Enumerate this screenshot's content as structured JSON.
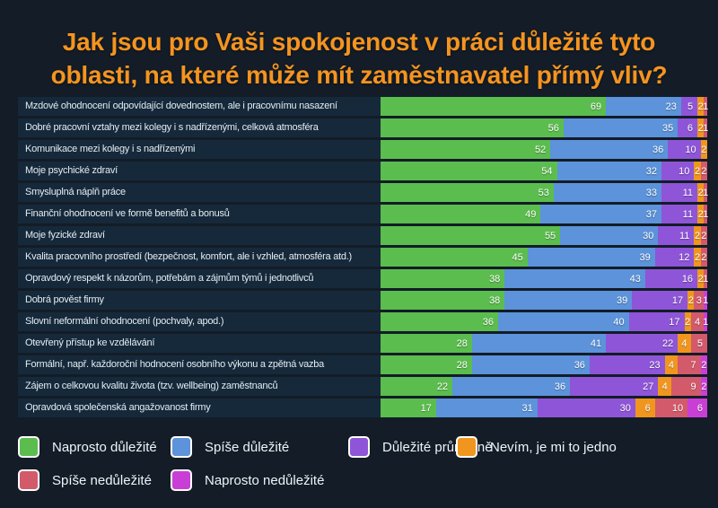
{
  "title": {
    "lines": [
      "Jak jsou pro Vaši spokojenost v práci důležité tyto",
      "oblasti, na které může mít zaměstnavatel přímý vliv?"
    ],
    "color": "#f5941f"
  },
  "colors": {
    "background": "#131c27",
    "row_band": "#16293a",
    "label_text": "#e3ecf3",
    "value_text": "#ffffff"
  },
  "chart_data": {
    "type": "bar",
    "orientation": "horizontal",
    "stacked": true,
    "unit": "percent",
    "xlim": [
      0,
      100
    ],
    "grid": false,
    "legend_position": "bottom",
    "title": "Jak jsou pro Vaši spokojenost v práci důležité tyto oblasti, na které může mít zaměstnavatel přímý vliv?",
    "categories": [
      "Mzdové ohodnocení odpovídající dovednostem, ale i pracovnímu nasazení",
      "Dobré pracovní vztahy mezi kolegy i s nadřízenými, celková atmosféra",
      "Komunikace mezi kolegy i s nadřízenými",
      "Moje psychické zdraví",
      "Smysluplná náplň práce",
      "Finanční ohodnocení ve formě benefitů a bonusů",
      "Moje fyzické zdraví",
      "Kvalita pracovního prostředí (bezpečnost, komfort, ale i  vzhled, atmosféra atd.)",
      "Opravdový respekt k názorům, potřebám a zájmům týmů i jednotlivců",
      "Dobrá pověst firmy",
      "Slovní neformální ohodnocení (pochvaly, apod.)",
      "Otevřený přístup ke vzdělávání",
      "Formální, např. každoroční hodnocení osobního výkonu a zpětná vazba",
      "Zájem o celkovou kvalitu života (tzv. wellbeing) zaměstnanců",
      "Opravdová společenská angažovanost firmy"
    ],
    "series": [
      {
        "name": "Naprosto důležité",
        "color": "#5bbd4e",
        "values": [
          69,
          56,
          52,
          54,
          53,
          49,
          55,
          45,
          38,
          38,
          36,
          28,
          28,
          22,
          17
        ]
      },
      {
        "name": "Spíše důležité",
        "color": "#5c93da",
        "values": [
          23,
          35,
          36,
          32,
          33,
          37,
          30,
          39,
          43,
          39,
          40,
          41,
          36,
          36,
          31
        ]
      },
      {
        "name": "Důležité průměrně",
        "color": "#8e55d8",
        "values": [
          5,
          6,
          10,
          10,
          11,
          11,
          11,
          12,
          16,
          17,
          17,
          22,
          23,
          27,
          30
        ]
      },
      {
        "name": "Nevím, je mi to jedno",
        "color": "#f0961e",
        "values": [
          2,
          2,
          2,
          2,
          2,
          2,
          2,
          2,
          2,
          2,
          2,
          4,
          4,
          4,
          6
        ]
      },
      {
        "name": "Spíše nedůležité",
        "color": "#d25a6b",
        "values": [
          1,
          1,
          0,
          2,
          1,
          1,
          2,
          2,
          1,
          3,
          4,
          5,
          7,
          9,
          10
        ]
      },
      {
        "name": "Naprosto nedůležité",
        "color": "#c93fd6",
        "values": [
          0,
          0,
          0,
          0,
          0,
          0,
          0,
          0,
          0,
          1,
          1,
          0,
          2,
          2,
          6
        ]
      }
    ]
  }
}
